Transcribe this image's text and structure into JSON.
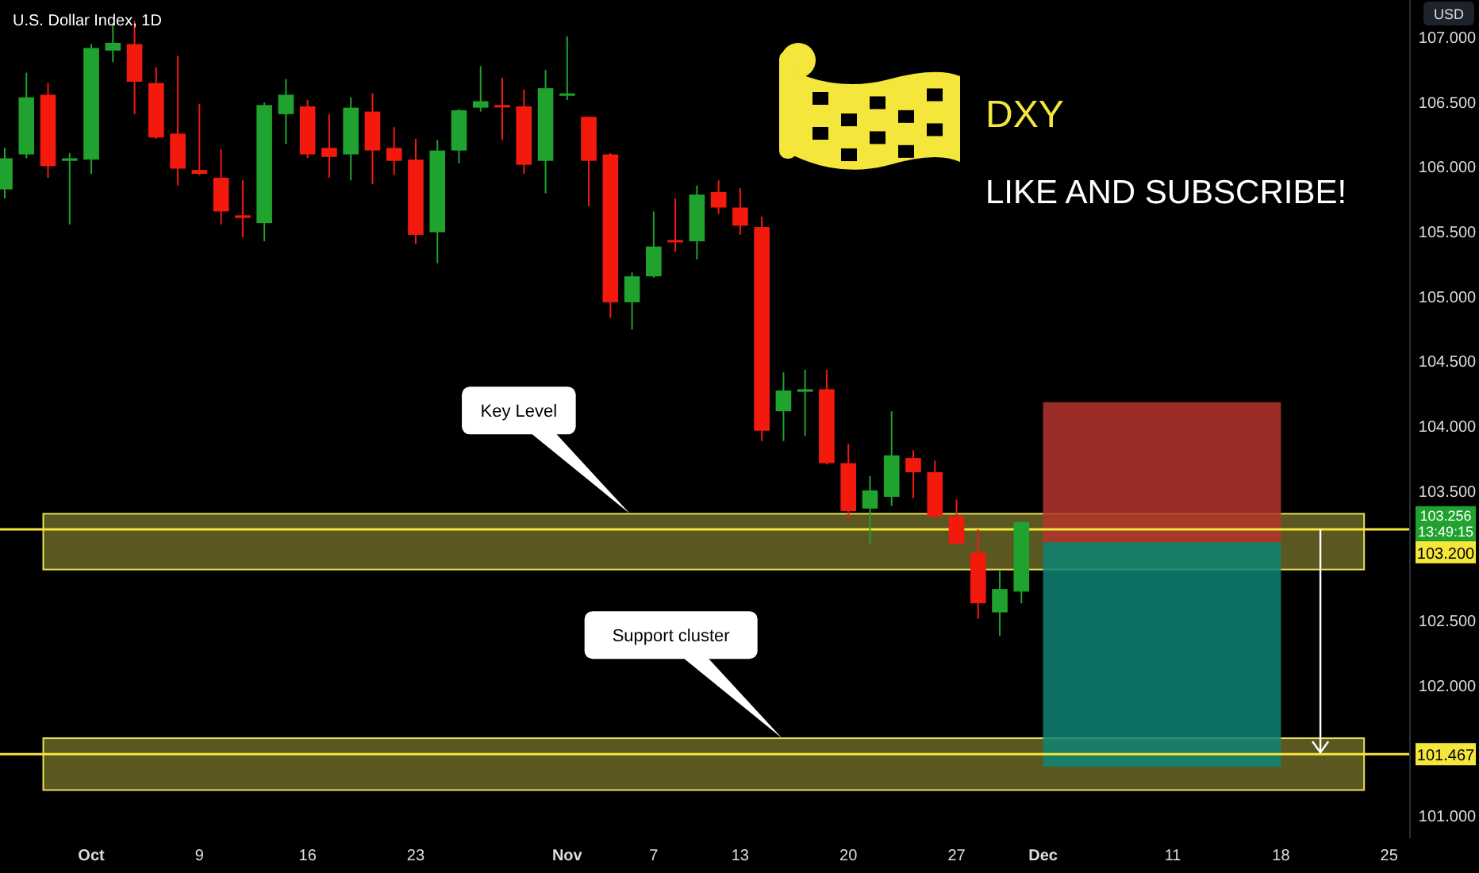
{
  "chart_data": {
    "type": "candlestick",
    "title": "U.S. Dollar Index, 1D",
    "subtitle": "DXY",
    "annotations": [
      "LIKE AND SUBSCRIBE!",
      "USD",
      "103.256",
      "13:49:15",
      "Key Level",
      "Support cluster"
    ],
    "categories": [
      null,
      null,
      null,
      null,
      "Oct",
      null,
      null,
      null,
      null,
      "9",
      null,
      null,
      null,
      null,
      "16",
      null,
      null,
      null,
      null,
      "23",
      null,
      null,
      null,
      null,
      null,
      null,
      "Nov",
      null,
      null,
      null,
      "7",
      null,
      null,
      null,
      "13",
      null,
      null,
      null,
      null,
      "20",
      null,
      null,
      null,
      null,
      "27",
      null,
      null,
      null,
      "Dec",
      null,
      null,
      null,
      null,
      null,
      "11",
      null,
      null,
      null,
      null,
      "18",
      null,
      null,
      null,
      null,
      "25",
      null
    ],
    "colors": [
      "#1fa22e",
      "#1fa22e",
      "#f3190d",
      "#1fa22e",
      "#1fa22e",
      "#1fa22e",
      "#f3190d",
      "#f3190d",
      "#f3190d",
      "#f3190d",
      "#f3190d",
      "#f3190d",
      "#1fa22e",
      "#1fa22e",
      "#f3190d",
      "#f3190d",
      "#1fa22e",
      "#f3190d",
      "#f3190d",
      "#f3190d",
      "#1fa22e",
      "#1fa22e",
      "#1fa22e",
      "#f3190d",
      "#f3190d",
      "#1fa22e",
      "#1fa22e",
      "#f3190d",
      "#f3190d",
      "#1fa22e",
      "#1fa22e",
      "#f3190d",
      "#1fa22e",
      "#f3190d",
      "#f3190d",
      "#f3190d",
      "#1fa22e",
      "#1fa22e",
      "#f3190d",
      "#f3190d",
      "#1fa22e",
      "#1fa22e",
      "#f3190d",
      "#f3190d",
      "#f3190d",
      "#f3190d",
      "#1fa22e",
      "#1fa22e",
      null,
      null,
      null,
      null,
      null,
      null,
      null,
      null,
      null,
      null,
      null,
      null,
      null,
      null,
      null,
      null,
      null,
      null
    ],
    "ohlc": [
      [
        105.82,
        106.14,
        105.75,
        106.06
      ],
      [
        106.09,
        106.72,
        106.06,
        106.53
      ],
      [
        106.55,
        106.64,
        105.91,
        106.0
      ],
      [
        106.04,
        106.1,
        105.55,
        106.06
      ],
      [
        106.05,
        106.94,
        105.94,
        106.91
      ],
      [
        106.89,
        107.1,
        106.8,
        106.95
      ],
      [
        106.94,
        107.12,
        106.4,
        106.65
      ],
      [
        106.64,
        106.76,
        106.21,
        106.22
      ],
      [
        106.25,
        106.85,
        105.85,
        105.98
      ],
      [
        105.97,
        106.48,
        105.93,
        105.94
      ],
      [
        105.91,
        106.13,
        105.55,
        105.65
      ],
      [
        105.62,
        105.89,
        105.45,
        105.6
      ],
      [
        105.56,
        106.49,
        105.42,
        106.47
      ],
      [
        106.4,
        106.67,
        106.17,
        106.55
      ],
      [
        106.46,
        106.51,
        106.06,
        106.09
      ],
      [
        106.14,
        106.4,
        105.91,
        106.07
      ],
      [
        106.09,
        106.53,
        105.89,
        106.45
      ],
      [
        106.42,
        106.56,
        105.86,
        106.12
      ],
      [
        106.14,
        106.3,
        105.93,
        106.04
      ],
      [
        106.05,
        106.21,
        105.4,
        105.47
      ],
      [
        105.49,
        106.2,
        105.25,
        106.12
      ],
      [
        106.12,
        106.44,
        106.02,
        106.43
      ],
      [
        106.45,
        106.77,
        106.42,
        106.5
      ],
      [
        106.47,
        106.68,
        106.2,
        106.46
      ],
      [
        106.46,
        106.59,
        105.94,
        106.01
      ],
      [
        106.04,
        106.74,
        105.79,
        106.6
      ],
      [
        106.55,
        107.0,
        106.51,
        106.56
      ],
      [
        106.38,
        106.38,
        105.69,
        106.04
      ],
      [
        106.09,
        106.1,
        104.83,
        104.95
      ],
      [
        104.95,
        105.18,
        104.74,
        105.15
      ],
      [
        105.15,
        105.65,
        105.14,
        105.38
      ],
      [
        105.43,
        105.75,
        105.34,
        105.42
      ],
      [
        105.42,
        105.85,
        105.28,
        105.78
      ],
      [
        105.8,
        105.89,
        105.63,
        105.68
      ],
      [
        105.68,
        105.83,
        105.47,
        105.54
      ],
      [
        105.53,
        105.61,
        103.88,
        103.96
      ],
      [
        104.11,
        104.41,
        103.88,
        104.27
      ],
      [
        104.26,
        104.43,
        103.92,
        104.28
      ],
      [
        104.28,
        104.43,
        103.7,
        103.71
      ],
      [
        103.71,
        103.86,
        103.28,
        103.34
      ],
      [
        103.36,
        103.61,
        103.08,
        103.5
      ],
      [
        103.45,
        104.11,
        103.38,
        103.77
      ],
      [
        103.75,
        103.81,
        103.44,
        103.64
      ],
      [
        103.64,
        103.73,
        103.28,
        103.3
      ],
      [
        103.3,
        103.43,
        103.08,
        103.09
      ],
      [
        103.02,
        103.2,
        102.51,
        102.63
      ],
      [
        102.56,
        102.88,
        102.38,
        102.74
      ],
      [
        102.72,
        103.26,
        102.63,
        103.256
      ],
      null,
      null,
      null,
      null,
      null,
      null,
      null,
      null,
      null,
      null,
      null,
      null,
      null,
      null,
      null,
      null,
      null,
      null
    ],
    "ylim": [
      100.82,
      107.28
    ],
    "yticks": [
      {
        "value": 101,
        "label": "101.000"
      },
      {
        "value": 102,
        "label": "102.000"
      },
      {
        "value": 102.5,
        "label": "102.500"
      },
      {
        "value": 103.5,
        "label": "103.500"
      },
      {
        "value": 104,
        "label": "104.000"
      },
      {
        "value": 104.5,
        "label": "104.500"
      },
      {
        "value": 105,
        "label": "105.000"
      },
      {
        "value": 105.5,
        "label": "105.500"
      },
      {
        "value": 106,
        "label": "106.000"
      },
      {
        "value": 106.5,
        "label": "106.500"
      },
      {
        "value": 107,
        "label": "107.000"
      }
    ],
    "ref_lines": [
      {
        "axis": "y",
        "value": 103.2,
        "label": "103.200",
        "color": "#f5e63c"
      },
      {
        "axis": "y",
        "value": 101.467,
        "label": "101.467",
        "color": "#f5e63c"
      }
    ],
    "bands": [
      {
        "axis": "y",
        "from": 102.89,
        "to": 103.32
      },
      {
        "axis": "y",
        "from": 101.19,
        "to": 101.59
      },
      {
        "axis": "y",
        "from": 103.1,
        "to": 104.18,
        "color": "#b5342c"
      },
      {
        "axis": "y",
        "from": 101.37,
        "to": 103.1,
        "color": "#0f8474"
      }
    ]
  }
}
